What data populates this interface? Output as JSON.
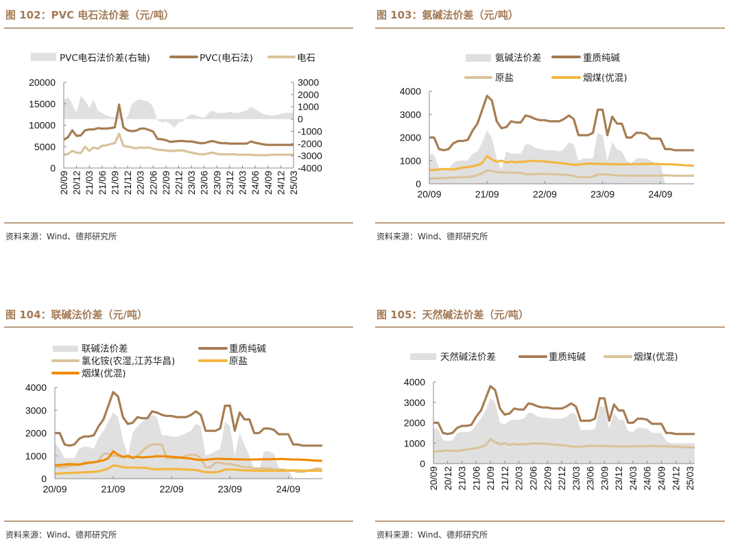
{
  "colors": {
    "soda": "#a67c52",
    "beige": "#d9c39a",
    "yellow": "#f4b63f",
    "orange": "#f08a00",
    "gray": "#e0e0e0",
    "title": "#a37a55"
  },
  "source": "资料来源：Wind、德邦研究所",
  "chart_data": [
    {
      "id": "fig102",
      "type": "line",
      "title": "图 102：PVC 电石法价差（元/吨）",
      "x_start": "2020-09",
      "x_step": "month",
      "xtick_labels": [
        "20/09",
        "20/12",
        "21/03",
        "21/06",
        "21/09",
        "21/12",
        "22/03",
        "22/06",
        "22/09",
        "22/12",
        "23/03",
        "23/06",
        "23/09",
        "23/12",
        "24/03",
        "24/06",
        "24/09",
        "24/12",
        "25/03"
      ],
      "ylim": [
        0,
        20000
      ],
      "yticks": [
        "0",
        "5000",
        "10000",
        "15000",
        "20000"
      ],
      "ylim_right": [
        -4000,
        3000
      ],
      "yticks_right": [
        "-4000",
        "-3000",
        "-2000",
        "-1000",
        "0",
        "1000",
        "2000",
        "3000"
      ],
      "series": [
        {
          "name": "PVC电石法价差(右轴)",
          "kind": "area",
          "axis": "right",
          "color": "#e0e0e0",
          "values": [
            1500,
            1800,
            1200,
            500,
            1900,
            1500,
            900,
            1600,
            700,
            500,
            300,
            200,
            100,
            600,
            -100,
            200,
            1200,
            1500,
            1600,
            1500,
            1400,
            1000,
            -100,
            -300,
            -200,
            -400,
            -700,
            -300,
            -200,
            200,
            400,
            300,
            200,
            100,
            500,
            700,
            500,
            500,
            500,
            600,
            500,
            500,
            600,
            700,
            1000,
            800,
            600,
            400,
            300,
            300,
            300,
            400,
            500,
            500,
            500
          ]
        },
        {
          "name": "PVC(电石法)",
          "kind": "line",
          "axis": "left",
          "color": "#a67c52",
          "values": [
            6600,
            7200,
            8800,
            7500,
            7600,
            8800,
            9000,
            9000,
            9300,
            9200,
            9200,
            9300,
            9500,
            14800,
            9500,
            8800,
            8600,
            8700,
            9200,
            9200,
            8900,
            8500,
            6800,
            6700,
            6500,
            6100,
            6200,
            6300,
            6300,
            6200,
            6200,
            6000,
            5800,
            5800,
            6100,
            6300,
            6000,
            5800,
            5800,
            5700,
            5700,
            5700,
            5700,
            5700,
            6200,
            5900,
            5700,
            5500,
            5400,
            5400,
            5400,
            5400,
            5400,
            5400,
            5400
          ]
        },
        {
          "name": "电石",
          "kind": "line",
          "axis": "left",
          "color": "#d9c39a",
          "values": [
            3100,
            3300,
            4000,
            3600,
            3500,
            5000,
            4000,
            4800,
            4500,
            5200,
            5300,
            5600,
            5800,
            8000,
            5200,
            5000,
            4800,
            4600,
            4800,
            4700,
            4800,
            4500,
            4300,
            4200,
            4100,
            4000,
            4000,
            4100,
            4100,
            3800,
            3600,
            3400,
            3200,
            3200,
            3400,
            3600,
            3300,
            3200,
            3200,
            3200,
            3200,
            3100,
            3100,
            3100,
            3100,
            3000,
            3000,
            3000,
            3000,
            3100,
            3100,
            3100,
            3100,
            3100,
            3100
          ]
        }
      ]
    },
    {
      "id": "fig103",
      "type": "line",
      "title": "图 103：氨碱法价差（元/吨）",
      "x_start": "2020-09",
      "x_step": "month",
      "xtick_labels": [
        "20/09",
        "21/09",
        "22/09",
        "23/09",
        "24/09"
      ],
      "ylim": [
        0,
        4000
      ],
      "yticks": [
        "0",
        "1000",
        "2000",
        "3000",
        "4000"
      ],
      "series": [
        {
          "name": "氨碱法价差",
          "kind": "area",
          "color": "#e0e0e0",
          "values": [
            1300,
            1250,
            700,
            650,
            650,
            900,
            1000,
            1000,
            1000,
            1300,
            1400,
            1800,
            2300,
            2000,
            1100,
            600,
            1400,
            1300,
            1300,
            1300,
            1700,
            1700,
            1550,
            1500,
            1450,
            1450,
            1450,
            1400,
            1500,
            1800,
            1700,
            1000,
            1100,
            1100,
            1100,
            2200,
            2100,
            1000,
            1800,
            1500,
            1400,
            1000,
            900,
            1100,
            1100,
            1100,
            1000,
            900,
            900,
            0,
            0,
            0,
            0,
            0,
            0,
            0
          ]
        },
        {
          "name": "重质纯碱",
          "kind": "line",
          "color": "#a67c52",
          "values": [
            2000,
            2000,
            1500,
            1450,
            1500,
            1750,
            1850,
            1850,
            1900,
            2300,
            2600,
            3200,
            3800,
            3600,
            2700,
            2400,
            2450,
            2700,
            2650,
            2650,
            2950,
            2900,
            2800,
            2750,
            2750,
            2700,
            2700,
            2700,
            2800,
            2950,
            2800,
            2100,
            2100,
            2100,
            2200,
            3200,
            3200,
            2100,
            2900,
            2600,
            2600,
            2000,
            2000,
            2200,
            2200,
            2150,
            1950,
            1950,
            1950,
            1500,
            1500,
            1450,
            1450,
            1450,
            1450,
            1450
          ]
        },
        {
          "name": "原盐",
          "kind": "line",
          "color": "#d9c39a",
          "values": [
            220,
            230,
            240,
            250,
            260,
            270,
            280,
            290,
            300,
            320,
            380,
            450,
            580,
            560,
            500,
            490,
            490,
            480,
            480,
            470,
            420,
            410,
            420,
            420,
            420,
            420,
            410,
            400,
            390,
            380,
            330,
            290,
            280,
            280,
            320,
            400,
            410,
            400,
            380,
            360,
            360,
            350,
            350,
            350,
            350,
            350,
            350,
            350,
            360,
            370,
            360,
            350,
            350,
            350,
            350,
            350
          ]
        },
        {
          "name": "烟煤(优混)",
          "kind": "line",
          "color": "#f4b63f",
          "values": [
            580,
            600,
            620,
            640,
            630,
            620,
            660,
            700,
            720,
            760,
            800,
            900,
            1200,
            1050,
            950,
            1000,
            920,
            960,
            930,
            950,
            960,
            990,
            980,
            980,
            960,
            940,
            920,
            900,
            880,
            840,
            820,
            830,
            850,
            870,
            870,
            860,
            860,
            850,
            850,
            840,
            840,
            840,
            850,
            850,
            850,
            860,
            860,
            860,
            850,
            840,
            840,
            830,
            820,
            800,
            790,
            780
          ]
        }
      ]
    },
    {
      "id": "fig104",
      "type": "line",
      "title": "图 104：联碱法价差（元/吨）",
      "x_start": "2020-09",
      "x_step": "month",
      "xtick_labels": [
        "20/09",
        "21/09",
        "22/09",
        "23/09",
        "24/09"
      ],
      "ylim": [
        0,
        4000
      ],
      "yticks": [
        "0",
        "1000",
        "2000",
        "3000",
        "4000"
      ],
      "series": [
        {
          "name": "联碱法价差",
          "kind": "area",
          "color": "#e0e0e0",
          "values": [
            1600,
            1300,
            900,
            900,
            900,
            1300,
            1400,
            1400,
            1300,
            1800,
            2100,
            2500,
            2900,
            2700,
            1700,
            1000,
            2000,
            2300,
            2500,
            2700,
            2800,
            2700,
            1900,
            1900,
            1850,
            1850,
            1900,
            2000,
            2100,
            2400,
            2300,
            1000,
            1100,
            1200,
            1300,
            2500,
            2300,
            1000,
            2000,
            1500,
            1000,
            400,
            300,
            1200,
            1200,
            1100,
            500,
            400,
            400,
            0,
            0,
            0,
            0,
            0,
            0,
            0
          ]
        },
        {
          "name": "重质纯碱",
          "kind": "line",
          "color": "#a67c52",
          "values": [
            2000,
            2000,
            1500,
            1450,
            1500,
            1750,
            1850,
            1850,
            1900,
            2300,
            2600,
            3200,
            3800,
            3600,
            2700,
            2400,
            2450,
            2700,
            2650,
            2650,
            2950,
            2900,
            2800,
            2750,
            2750,
            2700,
            2700,
            2700,
            2800,
            2950,
            2800,
            2100,
            2100,
            2100,
            2200,
            3200,
            3200,
            2100,
            2900,
            2600,
            2600,
            2000,
            2000,
            2200,
            2200,
            2150,
            1950,
            1950,
            1950,
            1500,
            1500,
            1450,
            1450,
            1450,
            1450,
            1450
          ]
        },
        {
          "name": "氯化铵(农湿,江苏华昌)",
          "kind": "line",
          "color": "#d9c39a",
          "values": [
            550,
            500,
            500,
            550,
            600,
            600,
            700,
            700,
            700,
            800,
            1100,
            1100,
            1000,
            1000,
            950,
            950,
            900,
            1000,
            1200,
            1400,
            1500,
            1500,
            1500,
            900,
            900,
            900,
            950,
            1000,
            1050,
            1050,
            900,
            500,
            500,
            700,
            700,
            650,
            650,
            600,
            550,
            500,
            500,
            450,
            450,
            450,
            450,
            400,
            400,
            400,
            350,
            350,
            300,
            300,
            350,
            400,
            450,
            400
          ]
        },
        {
          "name": "原盐",
          "kind": "line",
          "color": "#f4b63f",
          "values": [
            220,
            230,
            240,
            250,
            260,
            270,
            280,
            290,
            300,
            320,
            380,
            450,
            580,
            560,
            500,
            490,
            490,
            480,
            480,
            470,
            420,
            410,
            420,
            420,
            420,
            420,
            410,
            400,
            390,
            380,
            330,
            290,
            280,
            280,
            320,
            400,
            410,
            400,
            380,
            360,
            360,
            350,
            350,
            350,
            350,
            350,
            350,
            350,
            360,
            370,
            360,
            350,
            350,
            350,
            350,
            350
          ]
        },
        {
          "name": "烟煤(优混)",
          "kind": "line",
          "color": "#f08a00",
          "values": [
            580,
            600,
            620,
            640,
            630,
            620,
            660,
            700,
            720,
            760,
            800,
            900,
            1200,
            1050,
            950,
            1000,
            920,
            960,
            930,
            950,
            960,
            990,
            980,
            980,
            960,
            940,
            920,
            900,
            880,
            840,
            820,
            830,
            850,
            870,
            870,
            860,
            860,
            850,
            850,
            840,
            840,
            840,
            850,
            850,
            850,
            860,
            860,
            860,
            850,
            840,
            840,
            830,
            820,
            800,
            790,
            780
          ]
        }
      ]
    },
    {
      "id": "fig105",
      "type": "line",
      "title": "图 105：天然碱法价差（元/吨）",
      "x_start": "2020-09",
      "x_step": "month",
      "xtick_labels": [
        "20/09",
        "20/12",
        "21/03",
        "21/06",
        "21/09",
        "21/12",
        "22/03",
        "22/06",
        "22/09",
        "22/12",
        "23/03",
        "23/06",
        "23/09",
        "23/12",
        "24/03",
        "24/06",
        "24/09",
        "24/12",
        "25/03"
      ],
      "ylim": [
        0,
        4000
      ],
      "yticks": [
        "0",
        "1000",
        "2000",
        "3000",
        "4000"
      ],
      "series": [
        {
          "name": "天然碱法价差",
          "kind": "area",
          "color": "#e0e0e0",
          "values": [
            1700,
            1700,
            1150,
            1100,
            1150,
            1500,
            1550,
            1550,
            1600,
            1900,
            2200,
            2600,
            3200,
            3000,
            2000,
            1900,
            2100,
            2150,
            2150,
            2200,
            2500,
            2450,
            2300,
            2250,
            2250,
            2200,
            2200,
            2200,
            2300,
            2500,
            2400,
            1650,
            1650,
            1650,
            1700,
            2800,
            2800,
            1700,
            2500,
            2150,
            2150,
            1600,
            1550,
            1750,
            1750,
            1700,
            1500,
            1500,
            1500,
            1100,
            1000,
            1000,
            1000,
            1000,
            1000,
            1000
          ]
        },
        {
          "name": "重质纯碱",
          "kind": "line",
          "color": "#a67c52",
          "values": [
            2000,
            2000,
            1500,
            1450,
            1500,
            1750,
            1850,
            1850,
            1900,
            2300,
            2600,
            3200,
            3800,
            3600,
            2700,
            2400,
            2450,
            2700,
            2650,
            2650,
            2950,
            2900,
            2800,
            2750,
            2750,
            2700,
            2700,
            2700,
            2800,
            2950,
            2800,
            2100,
            2100,
            2100,
            2200,
            3200,
            3200,
            2100,
            2900,
            2600,
            2600,
            2000,
            2000,
            2200,
            2200,
            2150,
            1950,
            1950,
            1950,
            1500,
            1500,
            1450,
            1450,
            1450,
            1450,
            1450
          ]
        },
        {
          "name": "烟煤(优混)",
          "kind": "line",
          "color": "#d9c39a",
          "values": [
            580,
            600,
            620,
            640,
            630,
            620,
            660,
            700,
            720,
            760,
            800,
            900,
            1200,
            1050,
            950,
            1000,
            920,
            960,
            930,
            950,
            960,
            990,
            980,
            980,
            960,
            940,
            920,
            900,
            880,
            840,
            820,
            830,
            850,
            870,
            870,
            860,
            860,
            850,
            850,
            840,
            840,
            840,
            850,
            850,
            850,
            860,
            860,
            860,
            850,
            840,
            840,
            830,
            820,
            800,
            790,
            780
          ]
        }
      ]
    }
  ]
}
